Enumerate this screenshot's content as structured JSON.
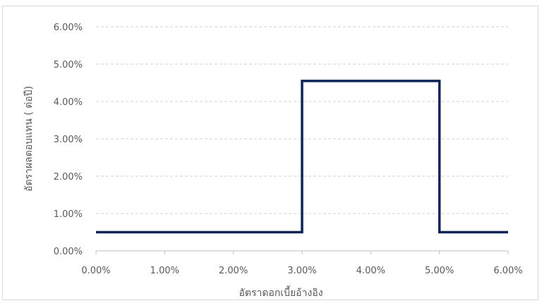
{
  "chart_data": {
    "type": "line",
    "title": "",
    "xlabel": "อัตราดอกเบี้ยอ้างอิง",
    "ylabel": "อัตราผลตอบแทน ( ต่อปี)",
    "xlim": [
      0,
      6
    ],
    "ylim": [
      0,
      6
    ],
    "x_ticks": [
      "0.00%",
      "1.00%",
      "2.00%",
      "3.00%",
      "4.00%",
      "5.00%",
      "6.00%"
    ],
    "y_ticks": [
      "0.00%",
      "1.00%",
      "2.00%",
      "3.00%",
      "4.00%",
      "5.00%",
      "6.00%"
    ],
    "grid": "horizontal-dashed",
    "legend": "none",
    "colors": {
      "line": "#0f2557",
      "grid": "#d0d0d0",
      "axis": "#bfbfbf",
      "text": "#595959"
    },
    "series": [
      {
        "x": [
          0.0,
          3.0,
          3.0,
          5.0,
          5.0,
          6.0
        ],
        "y": [
          0.5,
          0.5,
          4.55,
          4.55,
          0.5,
          0.5
        ]
      }
    ]
  }
}
